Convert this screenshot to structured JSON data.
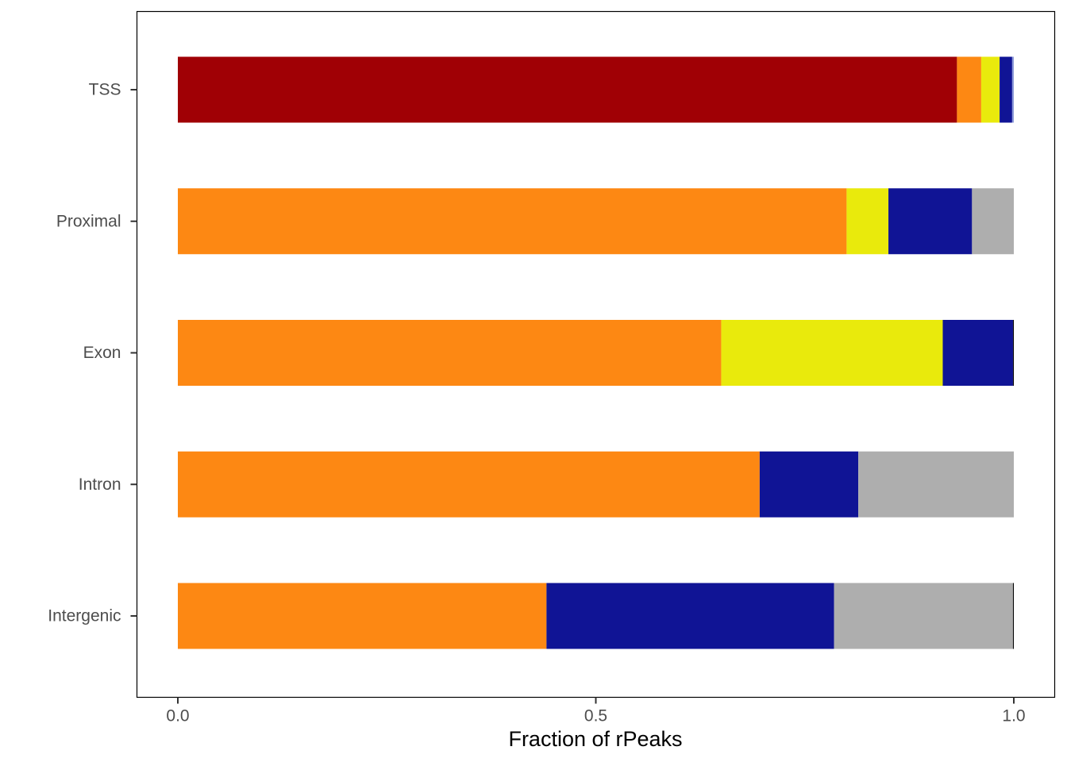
{
  "chart_data": {
    "type": "bar",
    "orientation": "horizontal",
    "stacked": true,
    "title": "",
    "xlabel": "Fraction of rPeaks",
    "ylabel": "",
    "xlim": [
      0,
      1
    ],
    "x_ticks": [
      {
        "value": 0,
        "label": "0.0"
      },
      {
        "value": 0.5,
        "label": "0.5"
      },
      {
        "value": 1,
        "label": "1.0"
      }
    ],
    "categories": [
      "TSS",
      "Proximal",
      "Exon",
      "Intron",
      "Intergenic"
    ],
    "grid": false,
    "legend": "none",
    "series": [
      {
        "color": "#a00005",
        "values": [
          0.932,
          0,
          0,
          0,
          0
        ]
      },
      {
        "color": "#fd8813",
        "values": [
          0.029,
          0.8,
          0.65,
          0.696,
          0.441
        ]
      },
      {
        "color": "#e9ea0c",
        "values": [
          0.022,
          0.05,
          0.265,
          0,
          0
        ]
      },
      {
        "color": "#101495",
        "values": [
          0.015,
          0.1,
          0.084,
          0.118,
          0.344
        ]
      },
      {
        "color": "#8e9ad9",
        "values": [
          0.002,
          0,
          0,
          0,
          0
        ]
      },
      {
        "color": "#aeaeae",
        "values": [
          0,
          0.05,
          0,
          0.186,
          0.214
        ]
      },
      {
        "color": "#000000",
        "values": [
          0,
          0,
          0.001,
          0,
          0.001
        ]
      }
    ]
  }
}
